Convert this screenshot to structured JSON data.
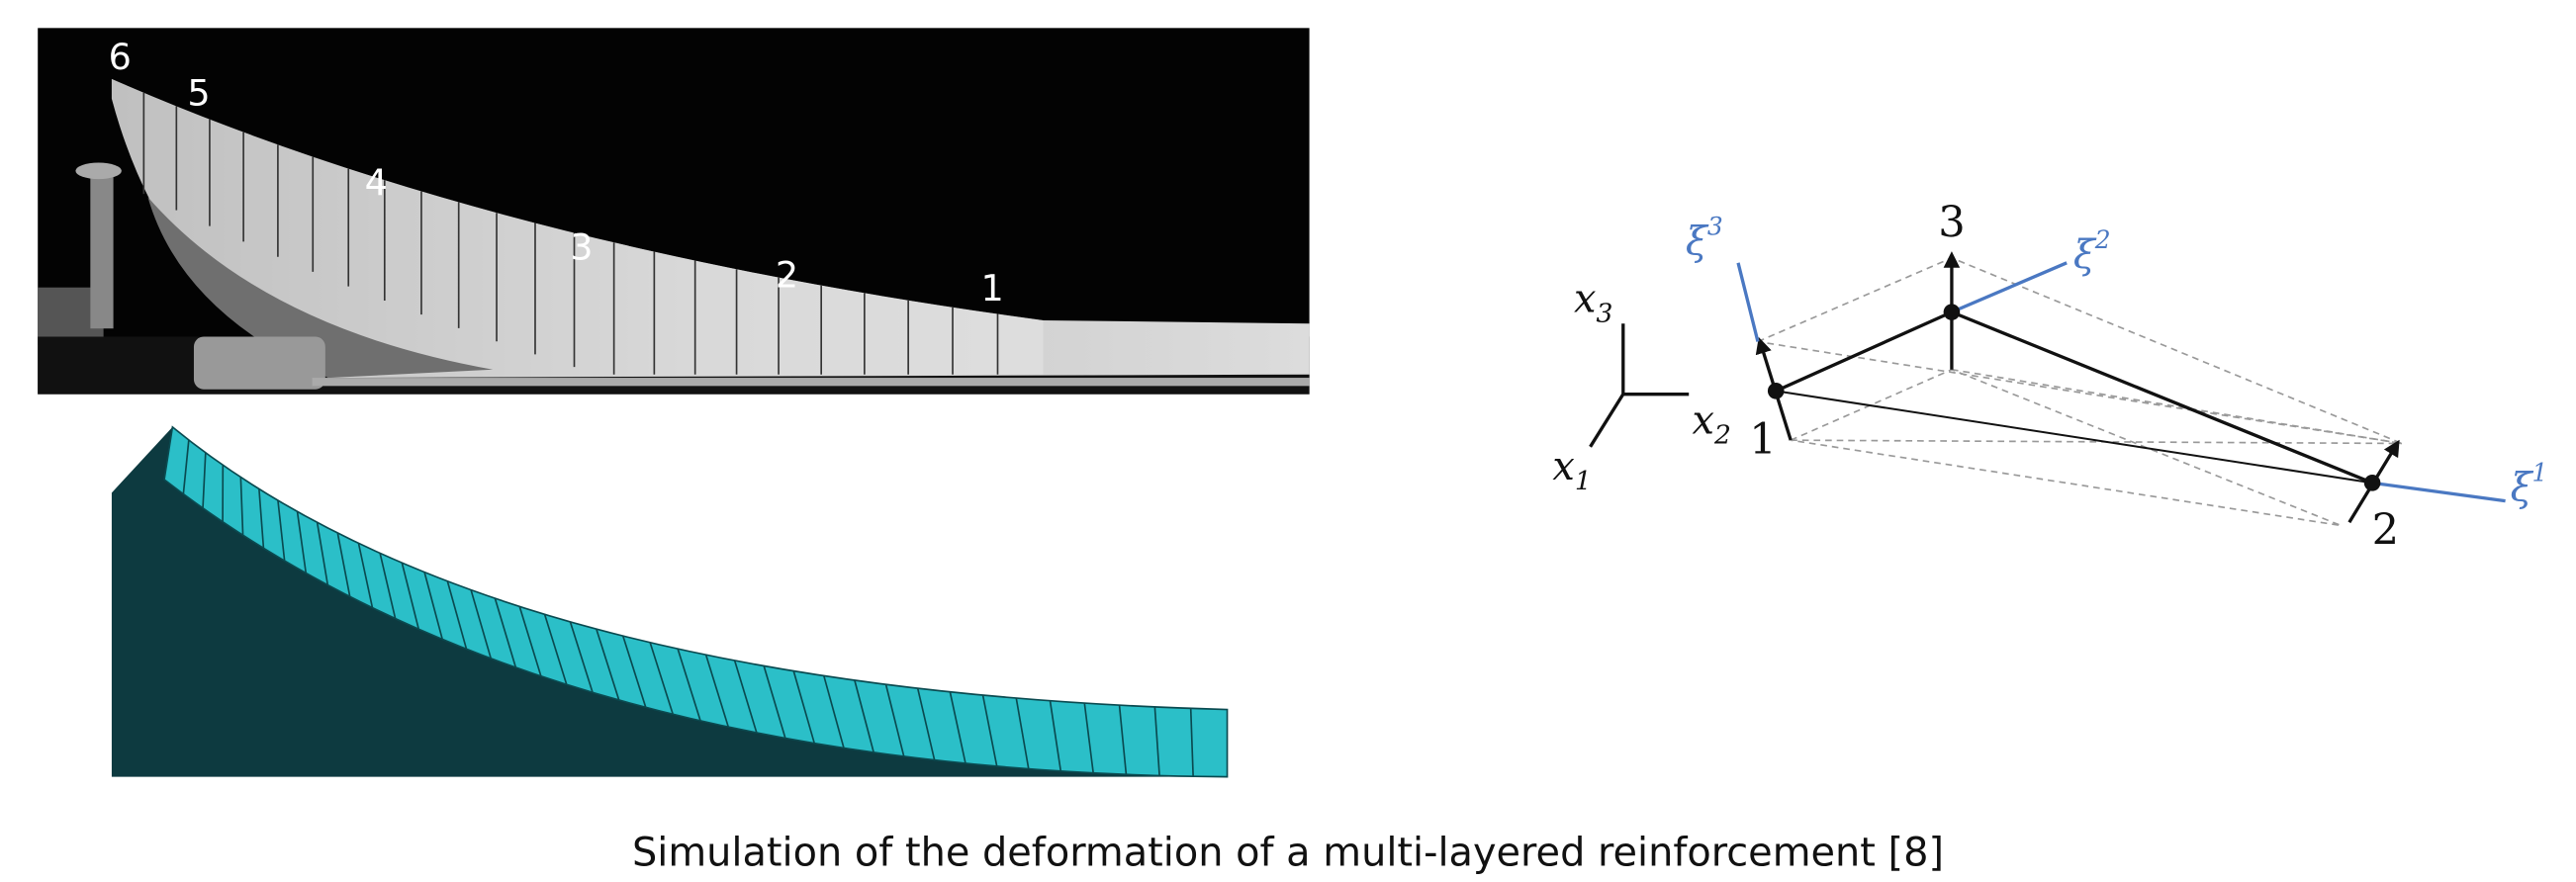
{
  "photo_labels": [
    "6",
    "5",
    "4",
    "3",
    "2",
    "1"
  ],
  "axes": [
    {
      "symbol": "x",
      "index": "3"
    },
    {
      "symbol": "x",
      "index": "2"
    },
    {
      "symbol": "x",
      "index": "1"
    }
  ],
  "nodes": [
    {
      "label": "1"
    },
    {
      "label": "2"
    },
    {
      "label": "3"
    }
  ],
  "local_axes": [
    {
      "symbol": "ξ",
      "index": "1"
    },
    {
      "symbol": "ξ",
      "index": "2"
    },
    {
      "symbol": "ξ",
      "index": "3"
    }
  ],
  "caption": "Simulation of the deformation of a multi-layered reinforcement [8]"
}
